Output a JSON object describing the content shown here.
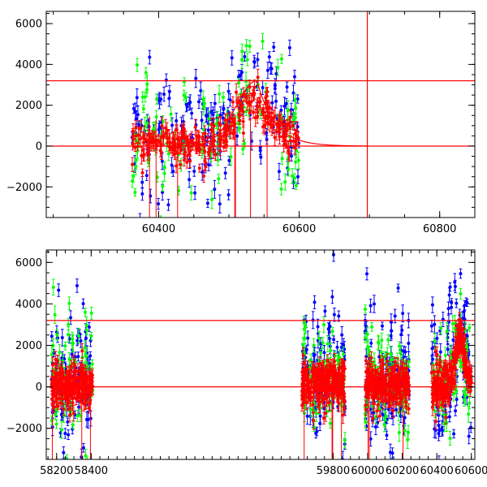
{
  "colors": {
    "red": "#ff0000",
    "green": "#00ff00",
    "blue": "#0000ff",
    "axis": "#000000"
  },
  "chart_data": [
    {
      "type": "scatter",
      "panel": "top",
      "title": "",
      "xlabel": "",
      "ylabel": "",
      "xlim": [
        60240,
        60850
      ],
      "ylim": [
        -3500,
        6600
      ],
      "xticks": [
        60400,
        60600,
        60800
      ],
      "xtick_labels": [
        "60400",
        "60600",
        "60800"
      ],
      "yticks": [
        -2000,
        0,
        2000,
        4000,
        6000
      ],
      "ytick_labels": [
        "−2000",
        "0",
        "2000",
        "4000",
        "6000"
      ],
      "hlines": [
        0,
        3200
      ],
      "vlines": [
        60697
      ],
      "series": [
        {
          "color": "blue",
          "segments": [
            [
              60362,
              60600
            ]
          ],
          "center": 600,
          "peak": 2600,
          "peak_at": 60535,
          "peak_width": 25,
          "scatter": 1600,
          "n": 170,
          "err": 300
        },
        {
          "color": "green",
          "segments": [
            [
              60362,
              60600
            ]
          ],
          "center": 400,
          "peak": 2300,
          "peak_at": 60535,
          "peak_width": 25,
          "scatter": 1400,
          "n": 130,
          "err": 300
        },
        {
          "color": "red",
          "segments": [
            [
              60362,
              60600
            ]
          ],
          "center": 100,
          "peak": 2200,
          "peak_at": 60535,
          "peak_width": 25,
          "scatter": 450,
          "n": 280,
          "err": 300
        }
      ],
      "model_curve": {
        "color": "red",
        "peak_at": 60540,
        "peak": 3200,
        "rise_width": 30,
        "decay_scale": 25,
        "x_from": 60370,
        "x_to": 60697
      }
    },
    {
      "type": "scatter",
      "panel": "bottom",
      "title": "",
      "xlabel": "",
      "ylabel": "",
      "xlim": [
        58140,
        60620
      ],
      "ylim": [
        -3500,
        6600
      ],
      "xticks": [
        58200,
        58400,
        59800,
        60000,
        60200,
        60400,
        60600
      ],
      "xtick_labels": [
        "58200",
        "58400",
        "59800",
        "60000",
        "60200",
        "60400",
        "60600"
      ],
      "yticks": [
        -2000,
        0,
        2000,
        4000,
        6000
      ],
      "ytick_labels": [
        "−2000",
        "0",
        "2000",
        "4000",
        "6000"
      ],
      "hlines": [
        0,
        3200
      ],
      "series": [
        {
          "color": "blue",
          "segments": [
            [
              58170,
              58410
            ],
            [
              59620,
              59870
            ],
            [
              59985,
              60240
            ],
            [
              60370,
              60600
            ]
          ],
          "center": 600,
          "peak": 2600,
          "peak_at": 60535,
          "peak_width": 25,
          "scatter": 1700,
          "n": 420,
          "err": 280
        },
        {
          "color": "green",
          "segments": [
            [
              58170,
              58410
            ],
            [
              59620,
              59870
            ],
            [
              59985,
              60240
            ],
            [
              60370,
              60600
            ]
          ],
          "center": 400,
          "peak": 2300,
          "peak_at": 60535,
          "peak_width": 25,
          "scatter": 1500,
          "n": 320,
          "err": 280
        },
        {
          "color": "red",
          "segments": [
            [
              58170,
              58410
            ],
            [
              59620,
              59870
            ],
            [
              59985,
              60240
            ],
            [
              60370,
              60600
            ]
          ],
          "center": 100,
          "peak": 2200,
          "peak_at": 60535,
          "peak_width": 25,
          "scatter": 550,
          "n": 900,
          "err": 280
        }
      ],
      "model_curve": {
        "color": "red",
        "peak_at": 60540,
        "peak": 3200,
        "rise_width": 30,
        "decay_scale": 25,
        "x_from": 60370,
        "x_to": 60620
      }
    }
  ]
}
